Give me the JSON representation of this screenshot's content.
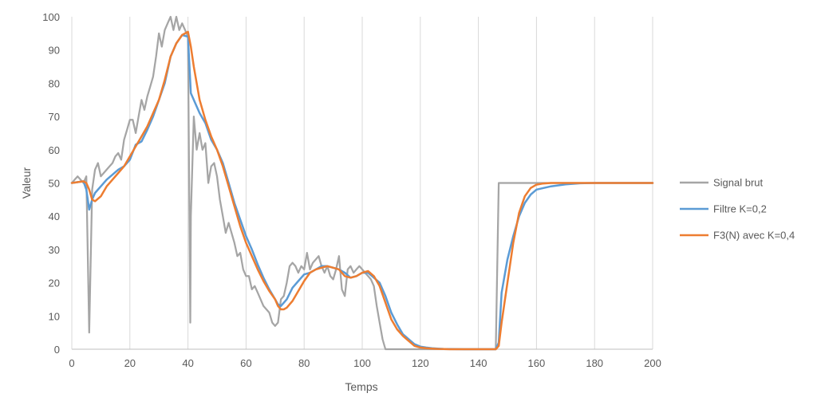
{
  "chart_data": {
    "type": "line",
    "xlabel": "Temps",
    "ylabel": "Valeur",
    "xlim": [
      0,
      200
    ],
    "ylim": [
      0,
      100
    ],
    "xticks": [
      "0",
      "20",
      "40",
      "60",
      "80",
      "100",
      "120",
      "140",
      "160",
      "180",
      "200"
    ],
    "yticks": [
      "0",
      "10",
      "20",
      "30",
      "40",
      "50",
      "60",
      "70",
      "80",
      "90",
      "100"
    ],
    "grid": "vertical",
    "legend_position": "right",
    "series": [
      {
        "name": "Signal brut",
        "color": "#a5a5a5",
        "x": [
          0,
          1,
          2,
          3,
          4,
          5,
          6,
          7,
          8,
          9,
          10,
          11,
          12,
          13,
          14,
          15,
          16,
          17,
          18,
          19,
          20,
          21,
          22,
          23,
          24,
          25,
          26,
          27,
          28,
          29,
          30,
          31,
          32,
          33,
          34,
          35,
          36,
          37,
          38,
          39,
          40,
          40.8,
          41,
          42,
          43,
          44,
          45,
          46,
          47,
          48,
          49,
          50,
          51,
          52,
          53,
          54,
          55,
          56,
          57,
          58,
          59,
          60,
          61,
          62,
          63,
          64,
          65,
          66,
          67,
          68,
          69,
          70,
          71,
          72,
          73,
          74,
          75,
          76,
          77,
          78,
          79,
          80,
          81,
          82,
          83,
          84,
          85,
          86,
          87,
          88,
          89,
          90,
          91,
          92,
          93,
          94,
          95,
          96,
          97,
          98,
          99,
          100,
          101,
          102,
          103,
          104,
          105,
          106,
          107,
          108,
          109,
          110,
          120,
          130,
          140,
          146,
          147,
          160,
          180,
          200
        ],
        "y": [
          50,
          51,
          52,
          51,
          50,
          52,
          5,
          48,
          54,
          56,
          52,
          53,
          54,
          55,
          56,
          58,
          59,
          57,
          63,
          66,
          69,
          69,
          65,
          70,
          75,
          72,
          76,
          79,
          82,
          88,
          95,
          91,
          96,
          98,
          100,
          96,
          100,
          96,
          98,
          96,
          94,
          8,
          40,
          70,
          60,
          65,
          60,
          62,
          50,
          55,
          56,
          52,
          45,
          40,
          35,
          38,
          35,
          32,
          28,
          29,
          24,
          22,
          22,
          18,
          19,
          17,
          15,
          13,
          12,
          11,
          8,
          7,
          8,
          15,
          16,
          20,
          25,
          26,
          25,
          23,
          25,
          24,
          29,
          24,
          26,
          27,
          28,
          25,
          23,
          25,
          22,
          21,
          24,
          28,
          18,
          16,
          24,
          25,
          23,
          24,
          25,
          24,
          23,
          22,
          21,
          19,
          13,
          8,
          3,
          0,
          0,
          0,
          0,
          0,
          0,
          0,
          50,
          50,
          50,
          50
        ]
      },
      {
        "name": "Filtre K=0,2",
        "color": "#5b9bd5",
        "x": [
          0,
          4,
          5,
          6,
          7,
          8,
          10,
          12,
          14,
          16,
          18,
          20,
          22,
          24,
          26,
          28,
          30,
          32,
          34,
          36,
          38,
          40,
          41,
          42,
          44,
          46,
          48,
          50,
          52,
          54,
          56,
          58,
          60,
          62,
          64,
          66,
          68,
          70,
          71,
          72,
          74,
          76,
          78,
          80,
          82,
          84,
          86,
          88,
          90,
          92,
          94,
          96,
          98,
          100,
          102,
          104,
          106,
          108,
          110,
          112,
          114,
          116,
          118,
          120,
          122,
          124,
          126,
          128,
          130,
          135,
          140,
          146,
          147,
          148,
          150,
          152,
          154,
          156,
          158,
          160,
          165,
          170,
          175,
          180,
          190,
          200
        ],
        "y": [
          50,
          50.5,
          48,
          42,
          45,
          47,
          49,
          51,
          52.5,
          54,
          55,
          57,
          61.5,
          62.5,
          66,
          70,
          75,
          80,
          88,
          92,
          94.5,
          94,
          77,
          75,
          71,
          68,
          63,
          60,
          56,
          50,
          44,
          39,
          34,
          30,
          25.5,
          21.5,
          18,
          15,
          13.5,
          13,
          15,
          18.5,
          20.5,
          22.5,
          23,
          24,
          25,
          25,
          24.5,
          24,
          23,
          21.5,
          22,
          23,
          23,
          21.5,
          20,
          16,
          11,
          7.5,
          4.5,
          3,
          1.5,
          0.8,
          0.5,
          0.3,
          0.2,
          0.1,
          0.05,
          0,
          0,
          0,
          2,
          17,
          27,
          34,
          40,
          44,
          46.5,
          48,
          49,
          49.6,
          49.9,
          50,
          50,
          50
        ]
      },
      {
        "name": "F3(N) avec K=0,4",
        "color": "#ed7d31",
        "x": [
          0,
          4,
          5,
          6,
          7,
          8,
          10,
          12,
          14,
          16,
          18,
          20,
          22,
          24,
          26,
          28,
          30,
          32,
          34,
          36,
          38,
          40,
          41,
          42,
          44,
          46,
          48,
          50,
          52,
          54,
          56,
          58,
          60,
          62,
          64,
          66,
          68,
          70,
          71,
          72,
          73,
          74,
          76,
          78,
          80,
          82,
          84,
          86,
          88,
          90,
          92,
          94,
          96,
          98,
          100,
          102,
          104,
          106,
          108,
          110,
          112,
          114,
          116,
          118,
          120,
          122,
          124,
          126,
          128,
          130,
          135,
          140,
          146,
          147,
          148,
          150,
          152,
          154,
          156,
          158,
          160,
          162,
          165,
          170,
          175,
          180,
          190,
          200
        ],
        "y": [
          50,
          50.5,
          50,
          48,
          45,
          44.5,
          46,
          49,
          51,
          53,
          55,
          58,
          61,
          64,
          67,
          71,
          75,
          81,
          88,
          92,
          94.5,
          95.5,
          91,
          85,
          75,
          69,
          64,
          60,
          55,
          49,
          43,
          37,
          32,
          28,
          24,
          20.5,
          17.5,
          15,
          13,
          12,
          12,
          12.5,
          14.5,
          17.5,
          20.5,
          23,
          24,
          24.5,
          25,
          24.5,
          24,
          22,
          21.5,
          22,
          23,
          23.5,
          22,
          19,
          14,
          9,
          6,
          4,
          2.5,
          1,
          0.5,
          0.3,
          0.2,
          0.1,
          0.05,
          0,
          0,
          0,
          0,
          1,
          8,
          20,
          32,
          41,
          46,
          48.5,
          49.5,
          49.8,
          50,
          50,
          50,
          50,
          50,
          50
        ]
      }
    ]
  }
}
